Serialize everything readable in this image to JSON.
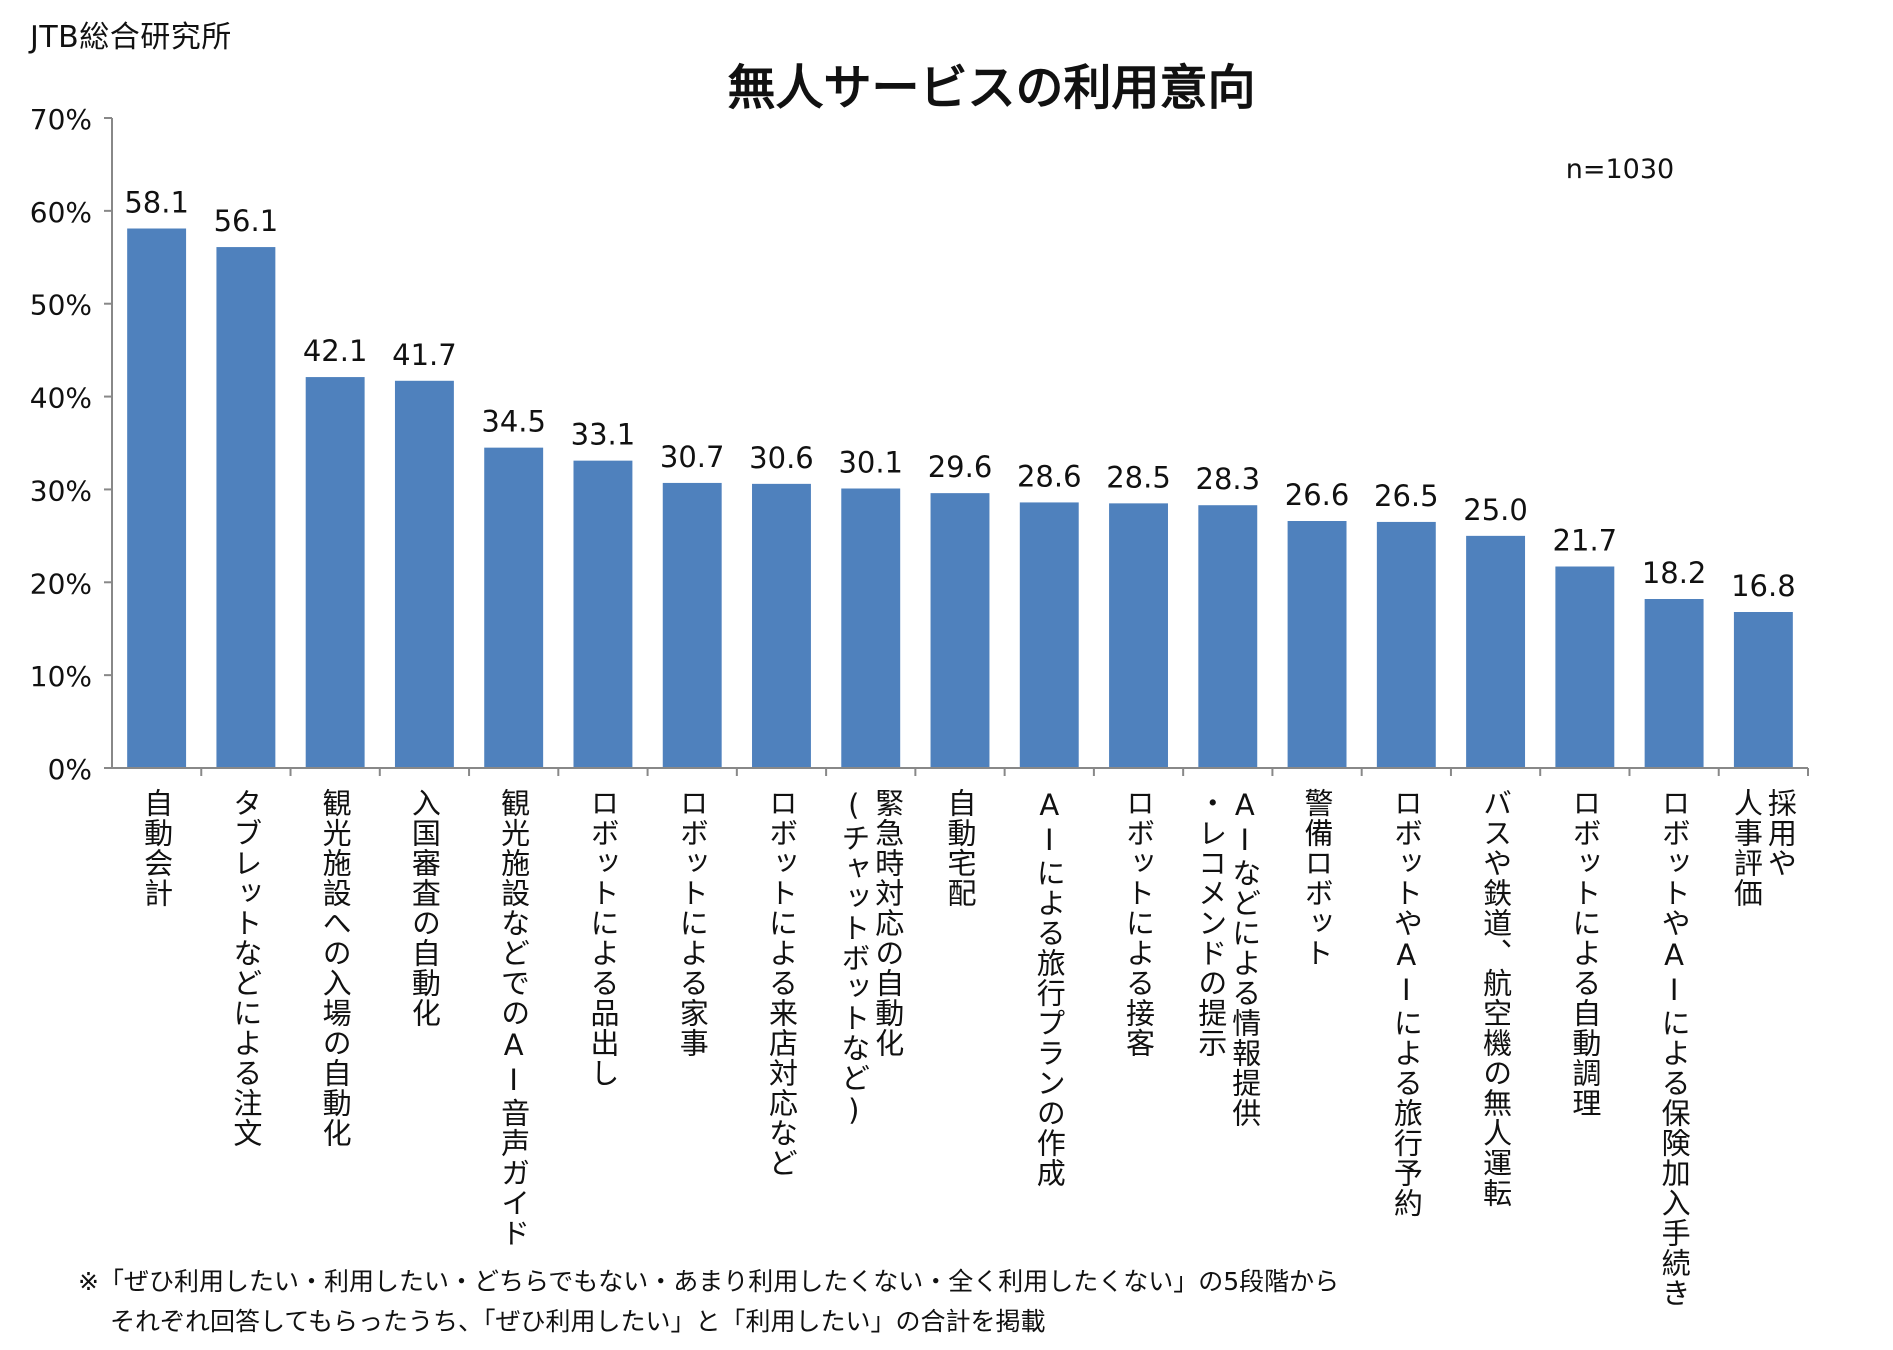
{
  "source": "JTB総合研究所",
  "chart_data": {
    "type": "bar",
    "title": "無人サービスの利用意向",
    "sample_size": "n=1030",
    "categories": [
      [
        "自動会計"
      ],
      [
        "タブレットなどによる注文"
      ],
      [
        "観光施設への入場の自動化"
      ],
      [
        "入国審査の自動化"
      ],
      [
        "観光施設などでのAI音声ガイド"
      ],
      [
        "ロボットによる品出し"
      ],
      [
        "ロボットによる家事"
      ],
      [
        "ロボットによる来店対応など"
      ],
      [
        "緊急時対応の自動化",
        "(チャットボットなど)"
      ],
      [
        "自動宅配"
      ],
      [
        "AIによる旅行プランの作成"
      ],
      [
        "ロボットによる接客"
      ],
      [
        "AIなどによる情報提供",
        "・レコメンドの提示"
      ],
      [
        "警備ロボット"
      ],
      [
        "ロボットやAIによる旅行予約"
      ],
      [
        "バスや鉄道、航空機の無人運転"
      ],
      [
        "ロボットによる自動調理"
      ],
      [
        "ロボットやAIによる保険加入手続き"
      ],
      [
        "採用や",
        "人事評価"
      ]
    ],
    "values": [
      58.1,
      56.1,
      42.1,
      41.7,
      34.5,
      33.1,
      30.7,
      30.6,
      30.1,
      29.6,
      28.6,
      28.5,
      28.3,
      26.6,
      26.5,
      25.0,
      21.7,
      18.2,
      16.8
    ],
    "value_labels": [
      "58.1",
      "56.1",
      "42.1",
      "41.7",
      "34.5",
      "33.1",
      "30.7",
      "30.6",
      "30.1",
      "29.6",
      "28.6",
      "28.5",
      "28.3",
      "26.6",
      "26.5",
      "25.0",
      "21.7",
      "18.2",
      "16.8"
    ],
    "ylim": [
      0,
      70
    ],
    "yticks": [
      0,
      10,
      20,
      30,
      40,
      50,
      60,
      70
    ],
    "ytick_labels": [
      "0%",
      "10%",
      "20%",
      "30%",
      "40%",
      "50%",
      "60%",
      "70%"
    ],
    "ylabel": "",
    "xlabel": "",
    "legend": "none",
    "grid": false,
    "bar_color": "#4f81bd"
  },
  "note": {
    "line1": "※「ぜひ利用したい・利用したい・どちらでもない・あまり利用したくない・全く利用したくない」の5段階から",
    "line2": "それぞれ回答してもらったうち、「ぜひ利用したい」と「利用したい」の合計を掲載"
  }
}
